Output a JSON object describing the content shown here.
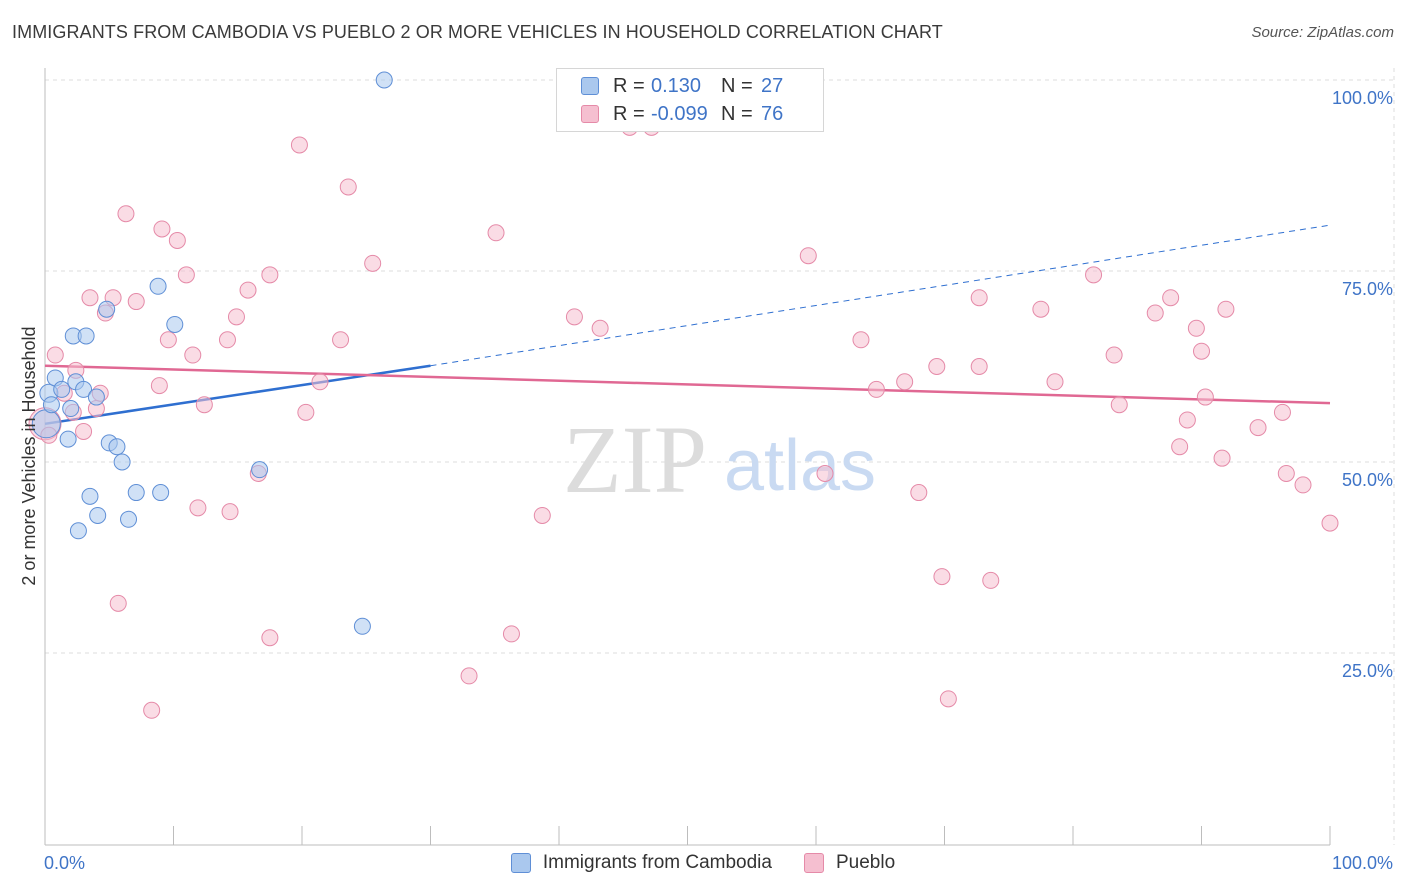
{
  "title": "IMMIGRANTS FROM CAMBODIA VS PUEBLO 2 OR MORE VEHICLES IN HOUSEHOLD CORRELATION CHART",
  "source": "Source: ZipAtlas.com",
  "watermark": {
    "zip": "ZIP",
    "atlas": "atlas"
  },
  "colors": {
    "blue_fill": "#aac8ee",
    "blue_stroke": "#5f8fd6",
    "blue_line": "#2f6fd0",
    "pink_fill": "#f5bfd0",
    "pink_stroke": "#e58aa8",
    "pink_line": "#e06893",
    "axis_label": "#3f74c7",
    "grid": "#dddddd"
  },
  "legend": {
    "r_label": "R =",
    "n_label": "N =",
    "rows": [
      {
        "series": "blue",
        "r": "0.130",
        "n": "27"
      },
      {
        "series": "pink",
        "r": "-0.099",
        "n": "76"
      }
    ]
  },
  "chart_data": {
    "type": "scatter",
    "title": "IMMIGRANTS FROM CAMBODIA VS PUEBLO 2 OR MORE VEHICLES IN HOUSEHOLD CORRELATION CHART",
    "xlabel": "",
    "ylabel": "2 or more Vehicles in Household",
    "xlim": [
      0,
      100
    ],
    "ylim": [
      0,
      105
    ],
    "x_tick_labels": [
      "0.0%",
      "100.0%"
    ],
    "y_ticks": [
      {
        "value": 25,
        "label": "25.0%"
      },
      {
        "value": 50,
        "label": "50.0%"
      },
      {
        "value": 75,
        "label": "75.0%"
      },
      {
        "value": 100,
        "label": "100.0%"
      }
    ],
    "grid": true,
    "legend_position": "bottom",
    "series": [
      {
        "name": "Immigrants from Cambodia",
        "color": "blue",
        "trend": {
          "x0": 0,
          "y0": 55.0,
          "x1": 30,
          "y1": 62.6,
          "dashed_to_x": 100,
          "dashed_to_y": 81.0
        },
        "points": [
          [
            0.1,
            55.0,
            14
          ],
          [
            0.3,
            59.0,
            9
          ],
          [
            0.8,
            61.0,
            8
          ],
          [
            1.3,
            59.5,
            8
          ],
          [
            1.8,
            53.0,
            8
          ],
          [
            2.0,
            57.0,
            8
          ],
          [
            2.2,
            66.5,
            8
          ],
          [
            2.4,
            60.5,
            8
          ],
          [
            2.6,
            41.0,
            8
          ],
          [
            3.0,
            59.5,
            8
          ],
          [
            3.2,
            66.5,
            8
          ],
          [
            3.5,
            45.5,
            8
          ],
          [
            4.1,
            43.0,
            8
          ],
          [
            4.0,
            58.5,
            8
          ],
          [
            4.8,
            70.0,
            8
          ],
          [
            5.0,
            52.5,
            8
          ],
          [
            5.6,
            52.0,
            8
          ],
          [
            6.0,
            50.0,
            8
          ],
          [
            6.5,
            42.5,
            8
          ],
          [
            7.1,
            46.0,
            8
          ],
          [
            9.0,
            46.0,
            8
          ],
          [
            8.8,
            73.0,
            8
          ],
          [
            10.1,
            68.0,
            8
          ],
          [
            16.7,
            49.0,
            8
          ],
          [
            24.7,
            28.5,
            8
          ],
          [
            26.4,
            100.0,
            8
          ],
          [
            0.5,
            57.5,
            8
          ]
        ]
      },
      {
        "name": "Pueblo",
        "color": "pink",
        "trend": {
          "x0": 0,
          "y0": 62.6,
          "x1": 100,
          "y1": 57.7
        },
        "points": [
          [
            0.0,
            55.0,
            16
          ],
          [
            0.8,
            64.0,
            8
          ],
          [
            1.5,
            59.0,
            8
          ],
          [
            2.2,
            56.5,
            8
          ],
          [
            2.4,
            62.0,
            8
          ],
          [
            3.0,
            54.0,
            8
          ],
          [
            3.5,
            71.5,
            8
          ],
          [
            4.0,
            57.0,
            8
          ],
          [
            4.3,
            59.0,
            8
          ],
          [
            4.7,
            69.5,
            8
          ],
          [
            5.3,
            71.5,
            8
          ],
          [
            5.7,
            31.5,
            8
          ],
          [
            6.3,
            82.5,
            8
          ],
          [
            7.1,
            71.0,
            8
          ],
          [
            8.3,
            17.5,
            8
          ],
          [
            8.9,
            60.0,
            8
          ],
          [
            9.1,
            80.5,
            8
          ],
          [
            9.6,
            66.0,
            8
          ],
          [
            10.3,
            79.0,
            8
          ],
          [
            11.0,
            74.5,
            8
          ],
          [
            11.5,
            64.0,
            8
          ],
          [
            11.9,
            44.0,
            8
          ],
          [
            12.4,
            57.5,
            8
          ],
          [
            14.2,
            66.0,
            8
          ],
          [
            14.4,
            43.5,
            8
          ],
          [
            14.9,
            69.0,
            8
          ],
          [
            15.8,
            72.5,
            8
          ],
          [
            16.6,
            48.5,
            8
          ],
          [
            17.5,
            74.5,
            8
          ],
          [
            17.5,
            27.0,
            8
          ],
          [
            19.8,
            91.5,
            8
          ],
          [
            20.3,
            56.5,
            8
          ],
          [
            21.4,
            60.5,
            8
          ],
          [
            23.0,
            66.0,
            8
          ],
          [
            23.6,
            86.0,
            8
          ],
          [
            25.5,
            76.0,
            8
          ],
          [
            33.0,
            22.0,
            8
          ],
          [
            35.1,
            80.0,
            8
          ],
          [
            36.3,
            27.5,
            8
          ],
          [
            38.7,
            43.0,
            8
          ],
          [
            41.2,
            69.0,
            8
          ],
          [
            43.2,
            67.5,
            8
          ],
          [
            45.5,
            93.8,
            8
          ],
          [
            47.2,
            93.8,
            8
          ],
          [
            59.4,
            77.0,
            8
          ],
          [
            60.7,
            48.5,
            8
          ],
          [
            63.5,
            66.0,
            8
          ],
          [
            64.7,
            59.5,
            8
          ],
          [
            66.9,
            60.5,
            8
          ],
          [
            68.0,
            46.0,
            8
          ],
          [
            69.4,
            62.5,
            8
          ],
          [
            69.8,
            35.0,
            8
          ],
          [
            70.3,
            19.0,
            8
          ],
          [
            72.7,
            62.5,
            8
          ],
          [
            72.7,
            71.5,
            8
          ],
          [
            73.6,
            34.5,
            8
          ],
          [
            77.5,
            70.0,
            8
          ],
          [
            78.6,
            60.5,
            8
          ],
          [
            81.6,
            74.5,
            8
          ],
          [
            83.2,
            64.0,
            8
          ],
          [
            83.6,
            57.5,
            8
          ],
          [
            86.4,
            69.5,
            8
          ],
          [
            87.6,
            71.5,
            8
          ],
          [
            88.3,
            52.0,
            8
          ],
          [
            88.9,
            55.5,
            8
          ],
          [
            89.6,
            67.5,
            8
          ],
          [
            90.0,
            64.5,
            8
          ],
          [
            90.3,
            58.5,
            8
          ],
          [
            91.6,
            50.5,
            8
          ],
          [
            91.9,
            70.0,
            8
          ],
          [
            94.4,
            54.5,
            8
          ],
          [
            96.3,
            56.5,
            8
          ],
          [
            96.6,
            48.5,
            8
          ],
          [
            97.9,
            47.0,
            8
          ],
          [
            100.0,
            42.0,
            8
          ],
          [
            0.3,
            53.5,
            8
          ]
        ]
      }
    ]
  },
  "bottom_legend": [
    {
      "label": "Immigrants from Cambodia",
      "color": "blue"
    },
    {
      "label": "Pueblo",
      "color": "pink"
    }
  ]
}
